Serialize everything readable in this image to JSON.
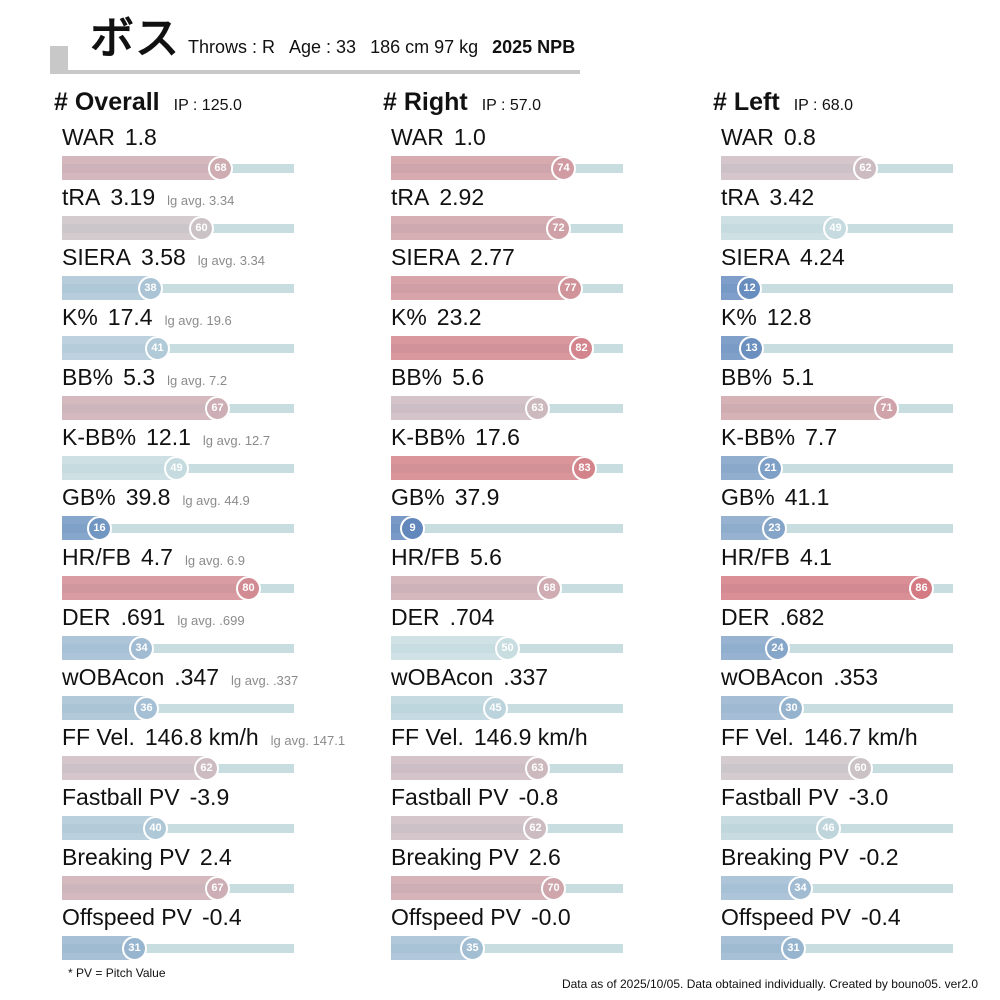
{
  "header": {
    "name": "ボス",
    "throws": "Throws : R",
    "age": "Age : 33",
    "size": "186 cm 97 kg",
    "season": "2025 NPB"
  },
  "chart_data": [
    {
      "type": "bar",
      "title": "# Overall",
      "subtitle": "IP : 125.0",
      "xlim": [
        0,
        100
      ],
      "metrics": [
        {
          "name": "WAR",
          "value": "1.8",
          "lg": "",
          "percentile": 68
        },
        {
          "name": "tRA",
          "value": "3.19",
          "lg": "lg avg. 3.34",
          "percentile": 60
        },
        {
          "name": "SIERA",
          "value": "3.58",
          "lg": "lg avg. 3.34",
          "percentile": 38
        },
        {
          "name": "K%",
          "value": "17.4",
          "lg": "lg avg. 19.6",
          "percentile": 41
        },
        {
          "name": "BB%",
          "value": "5.3",
          "lg": "lg avg. 7.2",
          "percentile": 67
        },
        {
          "name": "K-BB%",
          "value": "12.1",
          "lg": "lg avg. 12.7",
          "percentile": 49
        },
        {
          "name": "GB%",
          "value": "39.8",
          "lg": "lg avg. 44.9",
          "percentile": 16
        },
        {
          "name": "HR/FB",
          "value": "4.7",
          "lg": "lg avg. 6.9",
          "percentile": 80
        },
        {
          "name": "DER",
          "value": ".691",
          "lg": "lg avg. .699",
          "percentile": 34
        },
        {
          "name": "wOBAcon",
          "value": ".347",
          "lg": "lg avg. .337",
          "percentile": 36
        },
        {
          "name": "FF Vel.",
          "value": "146.8 km/h",
          "lg": "lg avg. 147.1",
          "percentile": 62
        },
        {
          "name": "Fastball PV",
          "value": "-3.9",
          "lg": "",
          "percentile": 40
        },
        {
          "name": "Breaking PV",
          "value": "2.4",
          "lg": "",
          "percentile": 67
        },
        {
          "name": "Offspeed PV",
          "value": "-0.4",
          "lg": "",
          "percentile": 31
        }
      ]
    },
    {
      "type": "bar",
      "title": "# Right",
      "subtitle": "IP : 57.0",
      "xlim": [
        0,
        100
      ],
      "metrics": [
        {
          "name": "WAR",
          "value": "1.0",
          "lg": "",
          "percentile": 74
        },
        {
          "name": "tRA",
          "value": "2.92",
          "lg": "",
          "percentile": 72
        },
        {
          "name": "SIERA",
          "value": "2.77",
          "lg": "",
          "percentile": 77
        },
        {
          "name": "K%",
          "value": "23.2",
          "lg": "",
          "percentile": 82
        },
        {
          "name": "BB%",
          "value": "5.6",
          "lg": "",
          "percentile": 63
        },
        {
          "name": "K-BB%",
          "value": "17.6",
          "lg": "",
          "percentile": 83
        },
        {
          "name": "GB%",
          "value": "37.9",
          "lg": "",
          "percentile": 9
        },
        {
          "name": "HR/FB",
          "value": "5.6",
          "lg": "",
          "percentile": 68
        },
        {
          "name": "DER",
          "value": ".704",
          "lg": "",
          "percentile": 50
        },
        {
          "name": "wOBAcon",
          "value": ".337",
          "lg": "",
          "percentile": 45
        },
        {
          "name": "FF Vel.",
          "value": "146.9 km/h",
          "lg": "",
          "percentile": 63
        },
        {
          "name": "Fastball PV",
          "value": "-0.8",
          "lg": "",
          "percentile": 62
        },
        {
          "name": "Breaking PV",
          "value": "2.6",
          "lg": "",
          "percentile": 70
        },
        {
          "name": "Offspeed PV",
          "value": "-0.0",
          "lg": "",
          "percentile": 35
        }
      ]
    },
    {
      "type": "bar",
      "title": "# Left",
      "subtitle": "IP : 68.0",
      "xlim": [
        0,
        100
      ],
      "metrics": [
        {
          "name": "WAR",
          "value": "0.8",
          "lg": "",
          "percentile": 62
        },
        {
          "name": "tRA",
          "value": "3.42",
          "lg": "",
          "percentile": 49
        },
        {
          "name": "SIERA",
          "value": "4.24",
          "lg": "",
          "percentile": 12
        },
        {
          "name": "K%",
          "value": "12.8",
          "lg": "",
          "percentile": 13
        },
        {
          "name": "BB%",
          "value": "5.1",
          "lg": "",
          "percentile": 71
        },
        {
          "name": "K-BB%",
          "value": "7.7",
          "lg": "",
          "percentile": 21
        },
        {
          "name": "GB%",
          "value": "41.1",
          "lg": "",
          "percentile": 23
        },
        {
          "name": "HR/FB",
          "value": "4.1",
          "lg": "",
          "percentile": 86
        },
        {
          "name": "DER",
          "value": ".682",
          "lg": "",
          "percentile": 24
        },
        {
          "name": "wOBAcon",
          "value": ".353",
          "lg": "",
          "percentile": 30
        },
        {
          "name": "FF Vel.",
          "value": "146.7 km/h",
          "lg": "",
          "percentile": 60
        },
        {
          "name": "Fastball PV",
          "value": "-3.0",
          "lg": "",
          "percentile": 46
        },
        {
          "name": "Breaking PV",
          "value": "-0.2",
          "lg": "",
          "percentile": 34
        },
        {
          "name": "Offspeed PV",
          "value": "-0.4",
          "lg": "",
          "percentile": 31
        }
      ]
    }
  ],
  "colors": {
    "low": "#4a74b4",
    "mid": "#c8dde0",
    "high": "#d8545e",
    "track": "#c8dde0",
    "header_rule": "#c8c8c8"
  },
  "footer": {
    "note": "* PV = Pitch Value",
    "credit": "Data as of 2025/10/05. Data obtained individually. Created by bouno05.  ver2.0"
  }
}
